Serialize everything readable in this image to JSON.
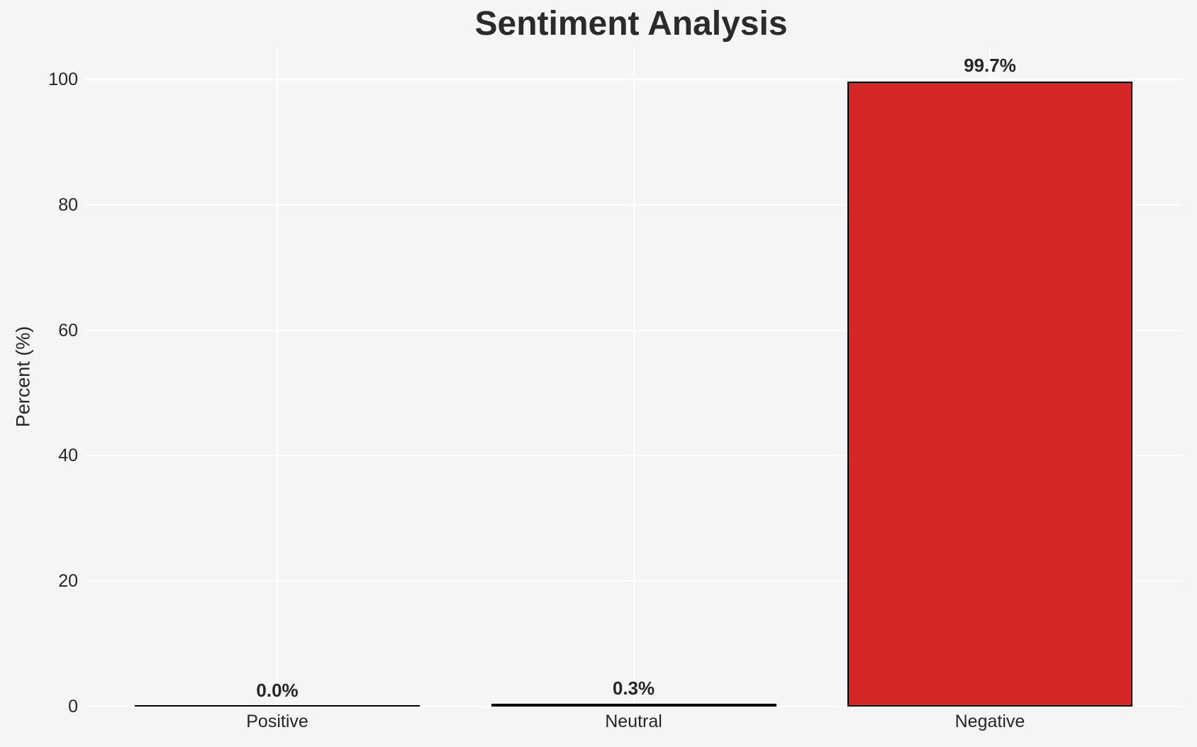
{
  "chart_data": {
    "type": "bar",
    "title": "Sentiment Analysis",
    "xlabel": "",
    "ylabel": "Percent (%)",
    "categories": [
      "Positive",
      "Neutral",
      "Negative"
    ],
    "values": [
      0.0,
      0.3,
      99.7
    ],
    "value_labels": [
      "0.0%",
      "0.3%",
      "99.7%"
    ],
    "yticks": [
      0,
      20,
      40,
      60,
      80,
      100
    ],
    "ylim": [
      0,
      105
    ],
    "grid": true,
    "legend": "none",
    "bar_color": "#d62728",
    "bar_edge_color": "#000000",
    "background_color": "#f5f5f5",
    "grid_color": "#ffffff",
    "text_color": "#262626"
  }
}
